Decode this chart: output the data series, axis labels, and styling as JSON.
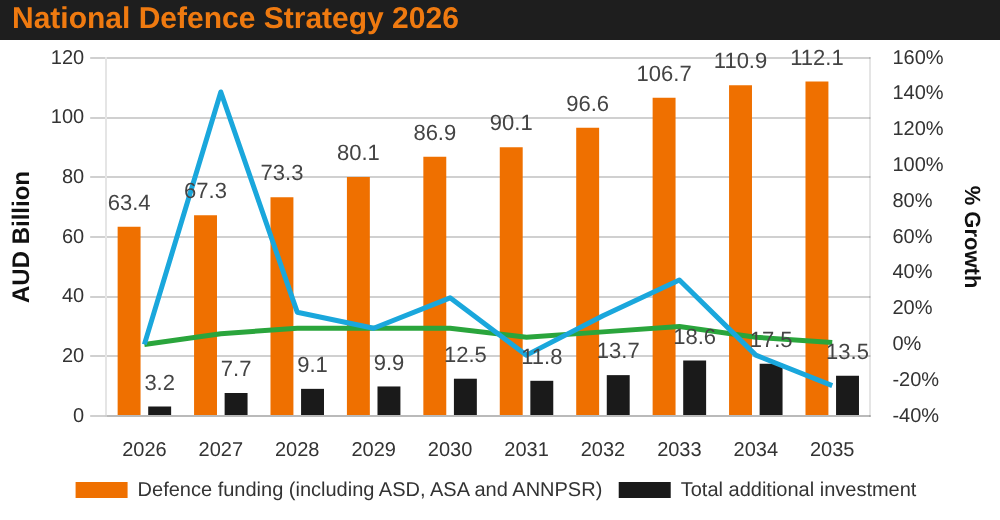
{
  "chart_data": {
    "type": "bar",
    "title": "National Defence Strategy 2026",
    "ylabel": "AUD Billion",
    "y2label": "% Growth",
    "categories": [
      "2026",
      "2027",
      "2028",
      "2029",
      "2030",
      "2031",
      "2032",
      "2033",
      "2034",
      "2035"
    ],
    "series": [
      {
        "name": "Defence funding (including ASD, ASA and ANNPSR)",
        "color": "#ef7000",
        "values": [
          63.4,
          67.3,
          73.3,
          80.1,
          86.9,
          90.1,
          96.6,
          106.7,
          110.9,
          112.1
        ],
        "value_labels": [
          "63.4",
          "67.3",
          "73.3",
          "80.1",
          "86.9",
          "90.1",
          "96.6",
          "106.7",
          "110.9",
          "112.1"
        ]
      },
      {
        "name": "Total additional investment",
        "color": "#1a1a1a",
        "values": [
          3.2,
          7.7,
          9.1,
          9.9,
          12.5,
          11.8,
          13.7,
          18.6,
          17.5,
          13.5
        ],
        "value_labels": [
          "3.2",
          "7.7",
          "9.1",
          "9.9",
          "12.5",
          "11.8",
          "13.7",
          "18.6",
          "17.5",
          "13.5"
        ]
      },
      {
        "type": "line",
        "axis": "y2",
        "color": "#1aa7dc",
        "values": [
          0,
          141,
          18,
          9,
          26,
          -6,
          16,
          36,
          -6,
          -23
        ]
      },
      {
        "type": "line",
        "axis": "y2",
        "color": "#2aa53c",
        "values": [
          0,
          6,
          9,
          9,
          9,
          4,
          7,
          10,
          4,
          1
        ]
      }
    ],
    "ylim": [
      0,
      120
    ],
    "yticks": [
      0,
      20,
      40,
      60,
      80,
      100,
      120
    ],
    "y2lim": [
      -40,
      160
    ],
    "y2ticks": [
      {
        "value": -40,
        "label": "-40%"
      },
      {
        "value": -20,
        "label": "-20%"
      },
      {
        "value": 0,
        "label": "0%"
      },
      {
        "value": 20,
        "label": "20%"
      },
      {
        "value": 40,
        "label": "40%"
      },
      {
        "value": 60,
        "label": "60%"
      },
      {
        "value": 80,
        "label": "80%"
      },
      {
        "value": 100,
        "label": "100%"
      },
      {
        "value": 120,
        "label": "120%"
      },
      {
        "value": 140,
        "label": "140%"
      },
      {
        "value": 160,
        "label": "160%"
      }
    ],
    "grid": "y",
    "legend": "bottom",
    "marker": "none"
  }
}
